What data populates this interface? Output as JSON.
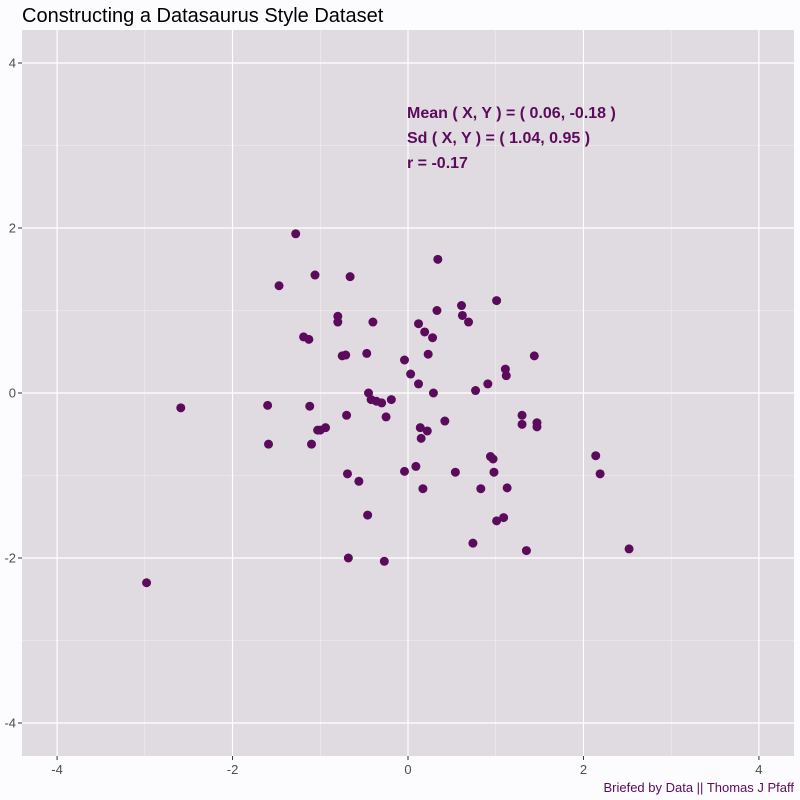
{
  "chart_data": {
    "type": "scatter",
    "title": "Constructing a Datasaurus Style Dataset",
    "xlabel": "",
    "ylabel": "",
    "xlim": [
      -4.4,
      4.4
    ],
    "ylim": [
      -4.4,
      4.4
    ],
    "x_ticks": [
      -4,
      -2,
      0,
      2,
      4
    ],
    "y_ticks": [
      -4,
      -2,
      0,
      2,
      4
    ],
    "grid": true,
    "point_color": "#5c0a5c",
    "annotation_color": "#5c0a5c",
    "annotations": [
      "Mean ( X, Y ) = ( 0.06, -0.18 )",
      "Sd ( X, Y ) = ( 1.04, 0.95 )",
      "r = -0.17"
    ],
    "caption": "Briefed by Data || Thomas J Pfaff",
    "series": [
      {
        "x": [
          -2.98,
          -2.59,
          -1.6,
          -1.59,
          -1.47,
          -1.28,
          -1.19,
          -1.12,
          -1.13,
          -1.1,
          -1.06,
          -1.03,
          -1.0,
          -0.94,
          -0.8,
          -0.8,
          -0.75,
          -0.71,
          -0.7,
          -0.69,
          -0.68,
          -0.66,
          -0.56,
          -0.47,
          -0.46,
          -0.45,
          -0.42,
          -0.4,
          -0.36,
          -0.3,
          -0.27,
          -0.25,
          -0.19,
          -0.04,
          -0.04,
          0.03,
          0.09,
          0.12,
          0.12,
          0.14,
          0.15,
          0.17,
          0.19,
          0.22,
          0.23,
          0.28,
          0.29,
          0.33,
          0.34,
          0.42,
          0.54,
          0.61,
          0.62,
          0.69,
          0.74,
          0.77,
          0.83,
          0.91,
          0.94,
          0.97,
          0.98,
          1.01,
          1.01,
          1.09,
          1.11,
          1.12,
          1.13,
          1.3,
          1.3,
          1.35,
          1.44,
          1.47,
          1.47,
          2.14,
          2.19,
          2.52
        ],
        "y": [
          -2.3,
          -0.18,
          -0.15,
          -0.62,
          1.3,
          1.93,
          0.68,
          -0.16,
          0.65,
          -0.62,
          1.43,
          -0.45,
          -0.45,
          -0.42,
          0.93,
          0.86,
          0.45,
          0.46,
          -0.27,
          -0.98,
          -2.0,
          1.41,
          -1.07,
          0.48,
          -1.48,
          0.0,
          -0.08,
          0.86,
          -0.1,
          -0.12,
          -2.04,
          -0.29,
          -0.08,
          0.4,
          -0.95,
          0.23,
          -0.89,
          0.11,
          0.84,
          -0.42,
          -0.55,
          -1.16,
          0.74,
          -0.46,
          0.47,
          0.67,
          0.0,
          1.0,
          1.62,
          -0.34,
          -0.96,
          1.06,
          0.94,
          0.86,
          -1.82,
          0.03,
          -1.16,
          0.11,
          -0.77,
          -0.8,
          -0.96,
          1.12,
          -1.55,
          -1.51,
          0.29,
          0.21,
          -1.15,
          -0.27,
          -0.38,
          -1.91,
          0.45,
          -0.41,
          -0.36,
          -0.76,
          -0.98,
          -1.89
        ]
      }
    ]
  }
}
